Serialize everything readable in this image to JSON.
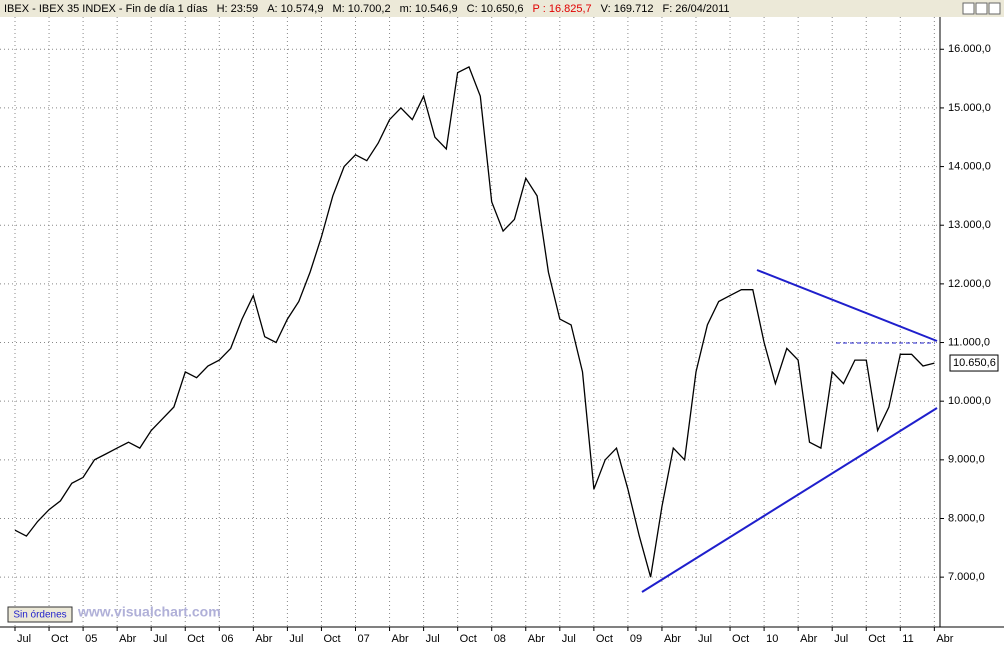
{
  "chart_data": {
    "type": "line",
    "header": [
      "IBEX - IBEX 35 INDEX - Fin de día 1 días",
      "H: 23:59",
      "A: 10.574,9",
      "M: 10.700,2",
      "m: 10.546,9",
      "C: 10.650,6",
      "P : 16.825,7",
      "V: 169.712",
      "F: 26/04/2011"
    ],
    "watermark": "www.visualchart.com",
    "button": "Sin órdenes",
    "categories": [
      "Jul",
      null,
      null,
      "Oct",
      null,
      null,
      "05",
      null,
      null,
      "Abr",
      null,
      null,
      "Jul",
      null,
      null,
      "Oct",
      null,
      null,
      "06",
      null,
      null,
      "Abr",
      null,
      null,
      "Jul",
      null,
      null,
      "Oct",
      null,
      null,
      "07",
      null,
      null,
      "Abr",
      null,
      null,
      "Jul",
      null,
      null,
      "Oct",
      null,
      null,
      "08",
      null,
      null,
      "Abr",
      null,
      null,
      "Jul",
      null,
      null,
      "Oct",
      null,
      null,
      "09",
      null,
      null,
      "Abr",
      null,
      null,
      "Jul",
      null,
      null,
      "Oct",
      null,
      null,
      "10",
      null,
      null,
      "Abr",
      null,
      null,
      "Jul",
      null,
      null,
      "Oct",
      null,
      null,
      "11",
      null,
      null,
      "Abr"
    ],
    "series": [
      {
        "name": "IBEX 35",
        "color": "#000000",
        "values": [
          7800,
          7700,
          7950,
          8150,
          8300,
          8600,
          8700,
          9000,
          9100,
          9200,
          9300,
          9200,
          9500,
          9700,
          9900,
          10500,
          10400,
          10600,
          10700,
          10900,
          11400,
          11800,
          11100,
          11000,
          11400,
          11700,
          12200,
          12800,
          13500,
          14000,
          14200,
          14100,
          14400,
          14800,
          15000,
          14800,
          15200,
          14500,
          14300,
          15600,
          15700,
          15200,
          13400,
          12900,
          13100,
          13800,
          13500,
          12200,
          11400,
          11300,
          10500,
          8500,
          9000,
          9200,
          8500,
          7700,
          7000,
          8200,
          9200,
          9000,
          10500,
          11300,
          11700,
          11800,
          11900,
          11900,
          11000,
          10300,
          10900,
          10700,
          9300,
          9200,
          10500,
          10300,
          10700,
          10700,
          9500,
          9900,
          10800,
          10800,
          10600,
          10650
        ]
      }
    ],
    "last_price": {
      "value": 10650.6,
      "label": "10.650,6"
    },
    "ylim": [
      6150,
      16550
    ],
    "yticks": [
      {
        "value": 7000,
        "label": "7.000,0"
      },
      {
        "value": 8000,
        "label": "8.000,0"
      },
      {
        "value": 9000,
        "label": "9.000,0"
      },
      {
        "value": 10000,
        "label": "10.000,0"
      },
      {
        "value": 11000,
        "label": "11.000,0"
      },
      {
        "value": 12000,
        "label": "12.000,0"
      },
      {
        "value": 13000,
        "label": "13.000,0"
      },
      {
        "value": 14000,
        "label": "14.000,0"
      },
      {
        "value": 15000,
        "label": "15.000,0"
      },
      {
        "value": 16000,
        "label": "16.000,0"
      }
    ],
    "grid": true
  }
}
